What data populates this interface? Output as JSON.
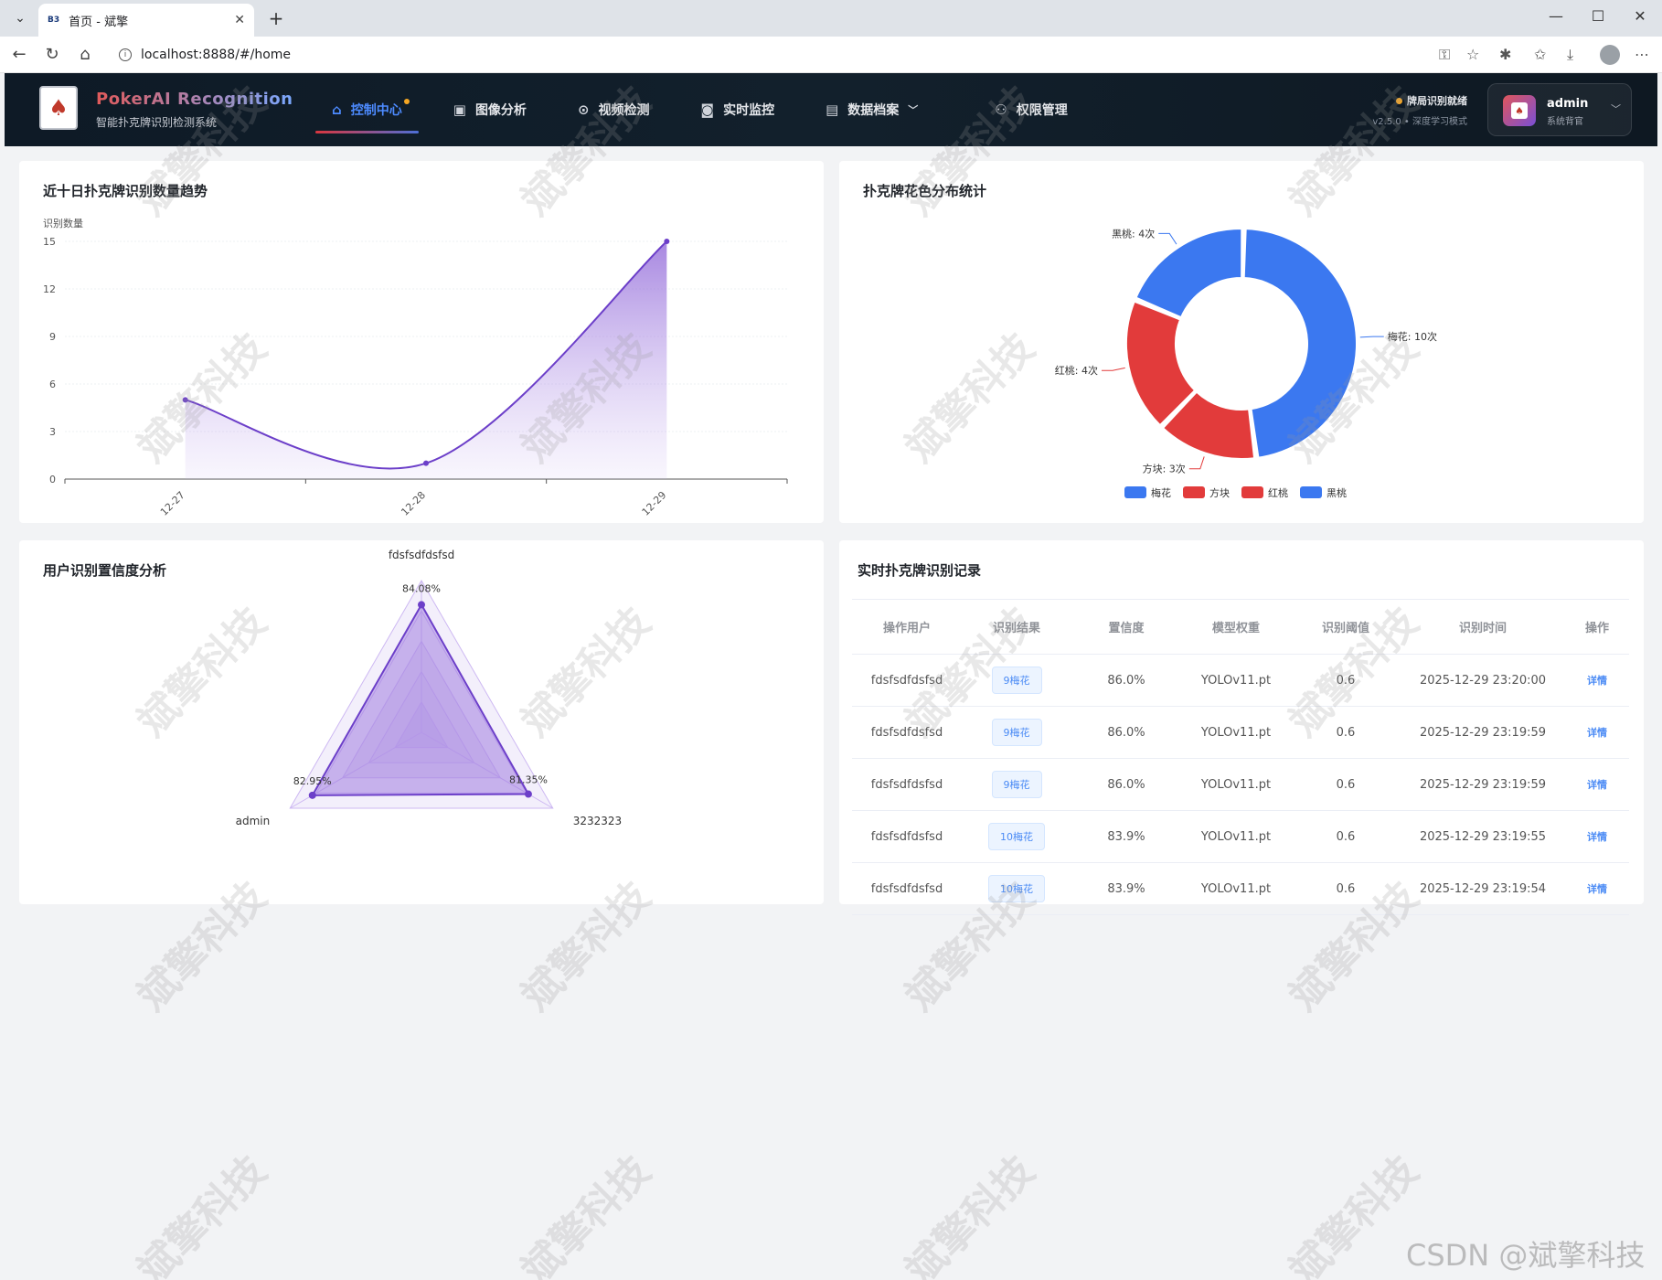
{
  "browser": {
    "tab_title": "首页 - 斌擎",
    "tab_favicon": "B3",
    "url": "localhost:8888/#/home"
  },
  "header": {
    "brand_title": "PokerAI Recognition",
    "brand_subtitle": "智能扑克牌识别检测系统",
    "nav": [
      {
        "label": "控制中心",
        "icon": "home-icon",
        "active": true
      },
      {
        "label": "图像分析",
        "icon": "image-icon"
      },
      {
        "label": "视频检测",
        "icon": "play-icon"
      },
      {
        "label": "实时监控",
        "icon": "camera-icon"
      },
      {
        "label": "数据档案",
        "icon": "document-icon"
      },
      {
        "label": "权限管理",
        "icon": "user-icon"
      }
    ],
    "status_text": "牌局识别就绪",
    "version_text": "v2.5.0 • 深度学习模式",
    "user_name": "admin",
    "user_role": "系统背官"
  },
  "trend_card": {
    "title": "近十日扑克牌识别数量趋势",
    "chart_data": {
      "type": "area",
      "ylabel": "识别数量",
      "categories": [
        "12-27",
        "12-28",
        "12-29"
      ],
      "values": [
        5,
        1,
        15
      ],
      "yticks": [
        0,
        3,
        6,
        9,
        12,
        15
      ],
      "ylim": [
        0,
        15
      ],
      "color": "#6c3fc9"
    }
  },
  "suit_card": {
    "title": "扑克牌花色分布统计",
    "chart_data": {
      "type": "pie",
      "slices": [
        {
          "name": "梅花",
          "value": 10,
          "label": "梅花: 10次",
          "color": "#3b78f0"
        },
        {
          "name": "方块",
          "value": 3,
          "label": "方块: 3次",
          "color": "#e23b3b"
        },
        {
          "name": "红桃",
          "value": 4,
          "label": "红桃: 4次",
          "color": "#e23b3b"
        },
        {
          "name": "黑桃",
          "value": 4,
          "label": "黑桃: 4次",
          "color": "#3b78f0"
        }
      ],
      "legend": [
        "梅花",
        "方块",
        "红桃",
        "黑桃"
      ]
    }
  },
  "confidence_card": {
    "title": "用户识别置信度分析",
    "chart_data": {
      "type": "radar",
      "indicators": [
        "fdsfsdfdsfsd",
        "3232323",
        "admin"
      ],
      "values": [
        84.08,
        81.35,
        82.95
      ],
      "value_labels": [
        "84.08%",
        "81.35%",
        "82.95%"
      ]
    }
  },
  "records_card": {
    "title": "实时扑克牌识别记录",
    "columns": [
      "操作用户",
      "识别结果",
      "置信度",
      "模型权重",
      "识别阈值",
      "识别时间",
      "操作"
    ],
    "rows": [
      {
        "user": "fdsfsdfdsfsd",
        "result": "9梅花",
        "confidence": "86.0%",
        "model": "YOLOv11.pt",
        "threshold": "0.6",
        "time": "2025-12-29 23:20:00",
        "action": "详情"
      },
      {
        "user": "fdsfsdfdsfsd",
        "result": "9梅花",
        "confidence": "86.0%",
        "model": "YOLOv11.pt",
        "threshold": "0.6",
        "time": "2025-12-29 23:19:59",
        "action": "详情"
      },
      {
        "user": "fdsfsdfdsfsd",
        "result": "9梅花",
        "confidence": "86.0%",
        "model": "YOLOv11.pt",
        "threshold": "0.6",
        "time": "2025-12-29 23:19:59",
        "action": "详情"
      },
      {
        "user": "fdsfsdfdsfsd",
        "result": "10梅花",
        "confidence": "83.9%",
        "model": "YOLOv11.pt",
        "threshold": "0.6",
        "time": "2025-12-29 23:19:55",
        "action": "详情"
      },
      {
        "user": "fdsfsdfdsfsd",
        "result": "10梅花",
        "confidence": "83.9%",
        "model": "YOLOv11.pt",
        "threshold": "0.6",
        "time": "2025-12-29 23:19:54",
        "action": "详情"
      }
    ]
  },
  "watermark_text": "斌擎科技",
  "footer_watermark": "CSDN @斌擎科技"
}
